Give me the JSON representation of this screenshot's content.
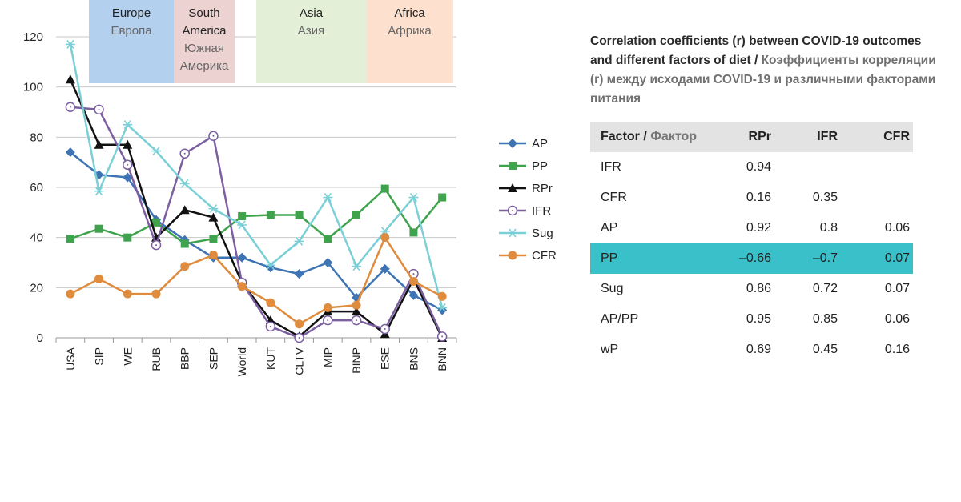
{
  "chart_data": {
    "type": "line",
    "categories": [
      "USA",
      "SIP",
      "WE",
      "RUB",
      "BBP",
      "SEP",
      "World",
      "KUT",
      "CLTV",
      "MIP",
      "BINP",
      "ESE",
      "BNS",
      "BNN"
    ],
    "yticks": [
      "0",
      "20",
      "40",
      "60",
      "80",
      "100",
      "120"
    ],
    "ylim": [
      0,
      120
    ],
    "grid": "horizontal",
    "legend_position": "right",
    "series": [
      {
        "name": "AP",
        "color": "#3e74b4",
        "marker": "diamond",
        "values": [
          74,
          65,
          64,
          47,
          39,
          32,
          32,
          28,
          25.5,
          30,
          16,
          27.5,
          17,
          11
        ]
      },
      {
        "name": "PP",
        "color": "#3fa34d",
        "marker": "square",
        "values": [
          39.5,
          43.5,
          40,
          46,
          37.5,
          39.5,
          48.5,
          49,
          49,
          39.5,
          49,
          59.5,
          42,
          56
        ]
      },
      {
        "name": "RPr",
        "color": "#111111",
        "marker": "triangle",
        "values": [
          103,
          77,
          77,
          40,
          51,
          48,
          22,
          7,
          0.5,
          10.5,
          10.5,
          1.5,
          23.5,
          0
        ]
      },
      {
        "name": "IFR",
        "color": "#7b5fa0",
        "marker": "circle",
        "values": [
          92,
          91,
          69,
          37,
          73.5,
          80.5,
          22,
          4.5,
          0,
          7,
          7,
          3.5,
          25.5,
          0.5
        ]
      },
      {
        "name": "Sug",
        "color": "#7bcfd6",
        "marker": "star",
        "values": [
          117,
          58.5,
          85,
          74.5,
          61.5,
          51.5,
          45,
          29,
          38.5,
          56,
          28.5,
          42.5,
          56,
          12
        ]
      },
      {
        "name": "CFR",
        "color": "#e08c3e",
        "marker": "dot",
        "values": [
          17.5,
          23.5,
          17.5,
          17.5,
          28.5,
          33,
          20.5,
          14,
          5.5,
          12,
          13,
          40,
          22.5,
          16.5
        ]
      }
    ]
  },
  "regions": [
    {
      "en": "Europe",
      "ru": "Европа",
      "color": "#b4d0ef"
    },
    {
      "en": "South America",
      "ru": "Южная Америка",
      "color": "#ecd2d0"
    },
    {
      "en": "Asia",
      "ru": "Азия",
      "color": "#e4efd8"
    },
    {
      "en": "Africa",
      "ru": "Африка",
      "color": "#fde1ce"
    }
  ],
  "table": {
    "title_en": "Correlation coefficients (r) between COVID-19 outcomes and different factors of diet",
    "title_sep": " / ",
    "title_ru": "Коэффициенты корреляции (r) между исходами COVID-19 и различными факторами питания",
    "header": {
      "factor_en": "Factor",
      "factor_sep": " / ",
      "factor_ru": "Фактор",
      "c1": "RPr",
      "c2": "IFR",
      "c3": "CFR"
    },
    "highlight_color": "#39c0c9",
    "rows": [
      {
        "label": "IFR",
        "c1": "0.94",
        "c2": "",
        "c3": ""
      },
      {
        "label": "CFR",
        "c1": "0.16",
        "c2": "0.35",
        "c3": ""
      },
      {
        "label": "AP",
        "c1": "0.92",
        "c2": "0.8",
        "c3": "0.06"
      },
      {
        "label": "PP",
        "c1": "–0.66",
        "c2": "–0.7",
        "c3": "0.07"
      },
      {
        "label": "Sug",
        "c1": "0.86",
        "c2": "0.72",
        "c3": "0.07"
      },
      {
        "label": "AP/PP",
        "c1": "0.95",
        "c2": "0.85",
        "c3": "0.06"
      },
      {
        "label": "wP",
        "c1": "0.69",
        "c2": "0.45",
        "c3": "0.16"
      }
    ]
  }
}
